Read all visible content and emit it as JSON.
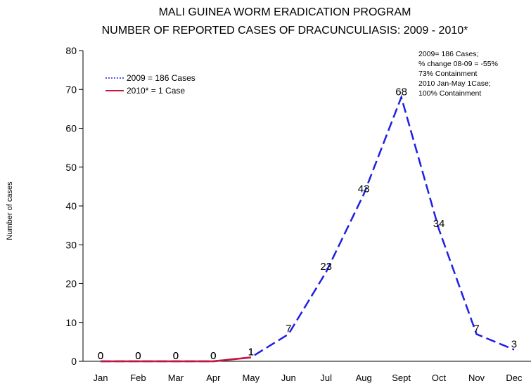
{
  "chart_data": {
    "type": "line",
    "title": [
      "MALI GUINEA WORM ERADICATION PROGRAM",
      "NUMBER OF REPORTED CASES OF DRACUNCULIASIS: 2009 - 2010*"
    ],
    "y_label": "Number of cases",
    "categories": [
      "Jan",
      "Feb",
      "Mar",
      "Apr",
      "May",
      "Jun",
      "Jul",
      "Aug",
      "Sept",
      "Oct",
      "Nov",
      "Dec"
    ],
    "series": [
      {
        "name": "2009 = 186 Cases",
        "color": "#1f1fe6",
        "values": [
          0,
          0,
          0,
          0,
          1,
          7,
          23,
          43,
          68,
          34,
          7,
          3
        ]
      },
      {
        "name": "2010* = 1 Case",
        "color": "#c8143c",
        "values": [
          0,
          0,
          0,
          0,
          1,
          null,
          null,
          null,
          null,
          null,
          null,
          null
        ]
      }
    ],
    "annotation": [
      "2009= 186 Cases;",
      "% change 08-09 = -55%",
      "73% Containment",
      "2010 Jan-May 1Case;",
      "100% Containment"
    ],
    "ylim": [
      0,
      80
    ],
    "yticks": [
      0,
      10,
      20,
      30,
      40,
      50,
      60,
      70,
      80
    ],
    "legend": "upper left"
  }
}
